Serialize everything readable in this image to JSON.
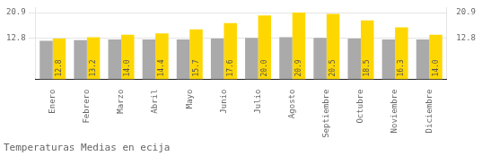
{
  "chart_data": {
    "type": "bar",
    "title": "Temperaturas Medias en ecija",
    "categories": [
      "Enero",
      "Febrero",
      "Marzo",
      "Abril",
      "Mayo",
      "Junio",
      "Julio",
      "Agosto",
      "Septiembre",
      "Octubre",
      "Noviembre",
      "Diciembre"
    ],
    "series": [
      {
        "color": "#AAAAAA",
        "values": [
          12.1,
          12.3,
          12.5,
          12.5,
          12.5,
          12.8,
          13.0,
          13.2,
          13.0,
          12.8,
          12.5,
          12.5
        ]
      },
      {
        "color": "#FFD700",
        "values": [
          12.8,
          13.2,
          14.0,
          14.4,
          15.7,
          17.6,
          20.0,
          20.9,
          20.5,
          18.5,
          16.3,
          14.0
        ],
        "data_labels": true,
        "value_labels": [
          "12.8",
          "13.2",
          "14.0",
          "14.4",
          "15.7",
          "17.6",
          "20.0",
          "20.9",
          "20.5",
          "18.5",
          "16.3",
          "14.0"
        ]
      }
    ],
    "ylim": [
      0,
      22.5
    ],
    "yticks": [
      12.8,
      20.9
    ],
    "y2lim": [
      0,
      22.5
    ],
    "y2ticks": [
      12.8,
      20.9
    ],
    "grid": true
  }
}
